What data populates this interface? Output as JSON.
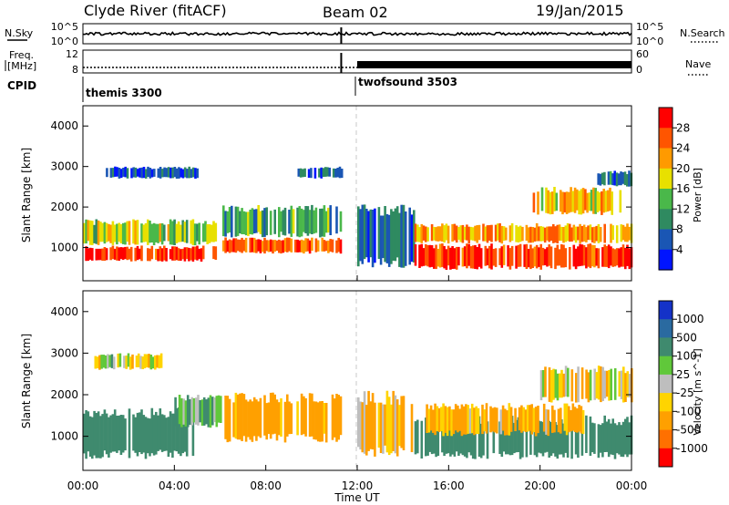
{
  "header": {
    "station": "Clyde River (fitACF)",
    "beam": "Beam 02",
    "date": "19/Jan/2015"
  },
  "strip": {
    "nsky_label": "N.Sky",
    "nsky_ticks": [
      "10^5",
      "10^0"
    ],
    "nsearch_label": "N.Search",
    "nsearch_ticks": [
      "10^5",
      "10^0"
    ],
    "freq_label_1": "Freq.",
    "freq_label_2": "[MHz]",
    "freq_ticks": [
      "12",
      "8"
    ],
    "nave_label": "Nave",
    "nave_ticks": [
      "60",
      "0"
    ],
    "cpid_label": "CPID",
    "cpid_segments": [
      {
        "name": "themis 3300",
        "start_hour": 0,
        "end_hour": 12
      },
      {
        "name": "twofsound 3503",
        "start_hour": 12,
        "end_hour": 24
      }
    ]
  },
  "colors": {
    "power_scale": [
      "#0014ff",
      "#1a56b4",
      "#2f8a60",
      "#4ab84a",
      "#e8e000",
      "#ff9a00",
      "#ff5500",
      "#ff0000"
    ],
    "velocity_scale": [
      "#1432c8",
      "#2a6aa0",
      "#3f8a6e",
      "#60c83a",
      "#bebebe",
      "#ffd400",
      "#ffa000",
      "#ff7000",
      "#ff0000"
    ]
  },
  "chart_data": [
    {
      "type": "heatmap",
      "name": "power",
      "xlabel": "",
      "ylabel": "Slant Range [km]",
      "xlim": [
        0,
        24
      ],
      "ylim": [
        180,
        4500
      ],
      "y_ticks": [
        1000,
        2000,
        3000,
        4000
      ],
      "colorbar_label": "Power [dB]",
      "colorbar_ticks": [
        "4",
        "8",
        "12",
        "16",
        "20",
        "24",
        "28"
      ],
      "grid": false,
      "regions": [
        {
          "x": [
            0.0,
            5.8
          ],
          "y": [
            650,
            1050
          ],
          "level": 28
        },
        {
          "x": [
            0.0,
            5.8
          ],
          "y": [
            1050,
            1700
          ],
          "level": 16
        },
        {
          "x": [
            6.1,
            11.3
          ],
          "y": [
            850,
            1250
          ],
          "level": 26
        },
        {
          "x": [
            6.1,
            11.3
          ],
          "y": [
            1250,
            2050
          ],
          "level": 12
        },
        {
          "x": [
            1.0,
            5.0
          ],
          "y": [
            2700,
            3000
          ],
          "level": 6
        },
        {
          "x": [
            9.3,
            11.3
          ],
          "y": [
            2700,
            3000
          ],
          "level": 6
        },
        {
          "x": [
            12.0,
            14.5
          ],
          "y": [
            500,
            2100
          ],
          "level": 6
        },
        {
          "x": [
            14.5,
            24.0
          ],
          "y": [
            450,
            1100
          ],
          "level": 28
        },
        {
          "x": [
            14.5,
            24.0
          ],
          "y": [
            1100,
            1600
          ],
          "level": 22
        },
        {
          "x": [
            19.5,
            23.5
          ],
          "y": [
            1800,
            2500
          ],
          "level": 20
        },
        {
          "x": [
            22.5,
            24.0
          ],
          "y": [
            2500,
            2900
          ],
          "level": 8
        }
      ]
    },
    {
      "type": "heatmap",
      "name": "velocity",
      "xlabel": "Time UT",
      "ylabel": "Slant Range [km]",
      "xlim": [
        0,
        24
      ],
      "x_ticks": [
        "00:00",
        "04:00",
        "08:00",
        "12:00",
        "16:00",
        "20:00",
        "00:00"
      ],
      "ylim": [
        180,
        4500
      ],
      "y_ticks": [
        1000,
        2000,
        3000,
        4000
      ],
      "colorbar_label": "Velocity [m s^-1]",
      "colorbar_ticks": [
        "1000",
        "500",
        "100",
        "25",
        "-25",
        "-100",
        "-500",
        "-1000"
      ],
      "grid": false,
      "regions": [
        {
          "x": [
            0.0,
            4.8
          ],
          "y": [
            450,
            1700
          ],
          "level": 300
        },
        {
          "x": [
            4.0,
            6.0
          ],
          "y": [
            1200,
            2000
          ],
          "level": 100
        },
        {
          "x": [
            6.1,
            11.3
          ],
          "y": [
            850,
            2050
          ],
          "level": -200
        },
        {
          "x": [
            0.5,
            3.5
          ],
          "y": [
            2600,
            3000
          ],
          "level": 0
        },
        {
          "x": [
            12.0,
            14.5
          ],
          "y": [
            500,
            2100
          ],
          "level": -100
        },
        {
          "x": [
            14.5,
            24.0
          ],
          "y": [
            450,
            1500
          ],
          "level": 300
        },
        {
          "x": [
            15.0,
            22.0
          ],
          "y": [
            1000,
            1800
          ],
          "level": -150
        },
        {
          "x": [
            20.0,
            24.0
          ],
          "y": [
            1800,
            2700
          ],
          "level": -50
        }
      ]
    }
  ]
}
